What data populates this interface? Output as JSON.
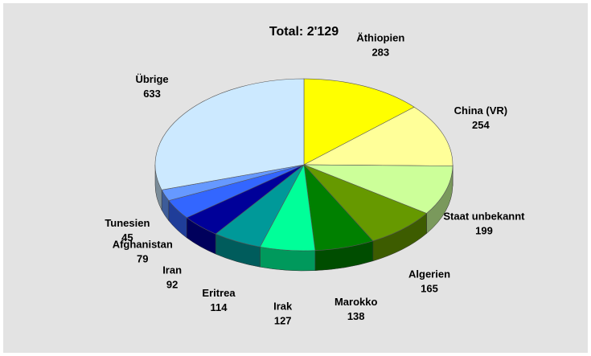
{
  "chart_data": {
    "type": "pie3d",
    "title": "Total: 2'129",
    "categories": [
      "Äthiopien",
      "China (VR)",
      "Staat unbekannt",
      "Algerien",
      "Marokko",
      "Irak",
      "Eritrea",
      "Iran",
      "Afghanistan",
      "Tunesien",
      "Übrige"
    ],
    "values": [
      283,
      254,
      199,
      165,
      138,
      127,
      114,
      92,
      79,
      45,
      633
    ],
    "colors": [
      "#ffff00",
      "#ffff99",
      "#ccff99",
      "#669900",
      "#008000",
      "#00ff99",
      "#009999",
      "#000099",
      "#3366ff",
      "#6699ff",
      "#cce9ff"
    ]
  }
}
